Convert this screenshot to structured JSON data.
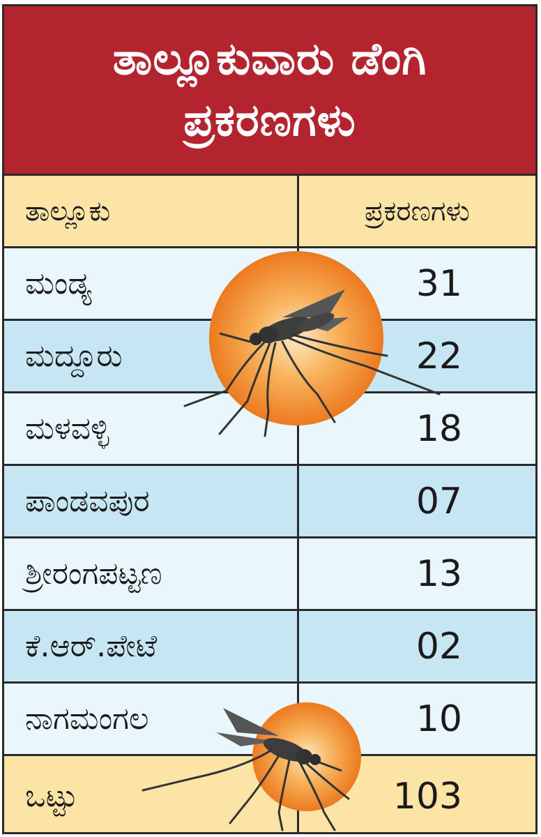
{
  "chart_data": {
    "type": "table",
    "title": "ತಾಲ್ಲೂಕುವಾರು ಡೆಂಗಿ ಪ್ರಕರಣಗಳು",
    "columns": [
      "ತಾಲ್ಲೂಕು",
      "ಪ್ರಕರಣಗಳು"
    ],
    "rows": [
      {
        "taluk": "ಮಂಡ್ಯ",
        "cases": "31"
      },
      {
        "taluk": "ಮದ್ದೂರು",
        "cases": "22"
      },
      {
        "taluk": "ಮಳವಳ್ಳಿ",
        "cases": "18"
      },
      {
        "taluk": "ಪಾಂಡವಪುರ",
        "cases": "07"
      },
      {
        "taluk": "ಶ್ರೀರಂಗಪಟ್ಟಣ",
        "cases": "13"
      },
      {
        "taluk": "ಕೆ.ಆರ್.ಪೇಟೆ",
        "cases": "02"
      },
      {
        "taluk": "ನಾಗಮಂಗಲ",
        "cases": "10"
      }
    ],
    "total": {
      "label": "ಒಟ್ಟು",
      "cases": "103"
    }
  },
  "colors": {
    "title_bg": "#b3242f",
    "header_bg": "#fce3a6",
    "row_light": "#e9f6fb",
    "row_dark": "#c5e6f2",
    "total_bg": "#fce3a6",
    "mosquito_circle": "#f08a2c"
  },
  "icons": [
    "mosquito-icon",
    "mosquito-icon"
  ]
}
